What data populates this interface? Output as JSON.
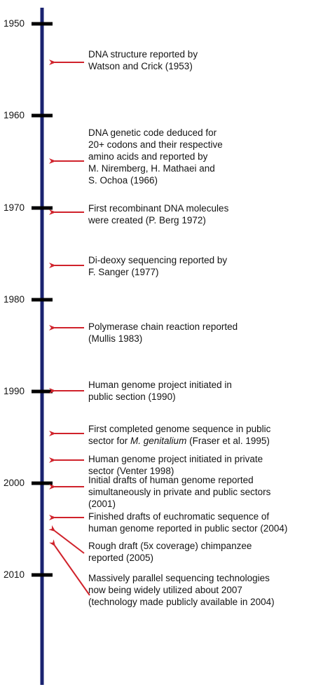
{
  "colors": {
    "axis": "#1a2370",
    "tick": "#000000",
    "arrow": "#d0222b",
    "text": "#141414"
  },
  "years": [
    "1950",
    "1960",
    "1970",
    "1980",
    "1990",
    "2000",
    "2010"
  ],
  "events": [
    {
      "lines": [
        [
          {
            "text": "DNA structure reported by"
          }
        ],
        [
          {
            "text": "Watson and Crick (1953)"
          }
        ]
      ]
    },
    {
      "lines": [
        [
          {
            "text": "DNA genetic code deduced for"
          }
        ],
        [
          {
            "text": "20+ codons and their respective"
          }
        ],
        [
          {
            "text": "amino acids and reported by"
          }
        ],
        [
          {
            "text": "M. Niremberg, H. Mathaei and"
          }
        ],
        [
          {
            "text": "S. Ochoa (1966)"
          }
        ]
      ]
    },
    {
      "lines": [
        [
          {
            "text": "First recombinant DNA molecules"
          }
        ],
        [
          {
            "text": "were created (P. Berg 1972)"
          }
        ]
      ]
    },
    {
      "lines": [
        [
          {
            "text": "Di-deoxy sequencing reported by"
          }
        ],
        [
          {
            "text": "F. Sanger (1977)"
          }
        ]
      ]
    },
    {
      "lines": [
        [
          {
            "text": "Polymerase chain reaction reported"
          }
        ],
        [
          {
            "text": "(Mullis 1983)"
          }
        ]
      ]
    },
    {
      "lines": [
        [
          {
            "text": "Human genome project initiated in"
          }
        ],
        [
          {
            "text": "public section (1990)"
          }
        ]
      ]
    },
    {
      "lines": [
        [
          {
            "text": "First completed genome sequence in public"
          }
        ],
        [
          {
            "text": "sector for "
          },
          {
            "text": "M. genitalium",
            "italic": true
          },
          {
            "text": " (Fraser et al. 1995)"
          }
        ]
      ]
    },
    {
      "lines": [
        [
          {
            "text": "Human genome project initiated in private"
          }
        ],
        [
          {
            "text": "sector (Venter 1998)"
          }
        ]
      ]
    },
    {
      "lines": [
        [
          {
            "text": "Initial drafts of human genome reported"
          }
        ],
        [
          {
            "text": "simultaneously in private and public sectors"
          }
        ],
        [
          {
            "text": "(2001)"
          }
        ]
      ]
    },
    {
      "lines": [
        [
          {
            "text": "Finished drafts of euchromatic sequence of"
          }
        ],
        [
          {
            "text": "human genome reported in public sector (2004)"
          }
        ]
      ]
    },
    {
      "lines": [
        [
          {
            "text": "Rough draft (5x coverage) chimpanzee"
          }
        ],
        [
          {
            "text": "reported (2005)"
          }
        ]
      ]
    },
    {
      "lines": [
        [
          {
            "text": "Massively parallel sequencing technologies"
          }
        ],
        [
          {
            "text": "now being widely utilized about 2007"
          }
        ],
        [
          {
            "text": "(technology made publicly available in 2004)"
          }
        ]
      ]
    }
  ]
}
